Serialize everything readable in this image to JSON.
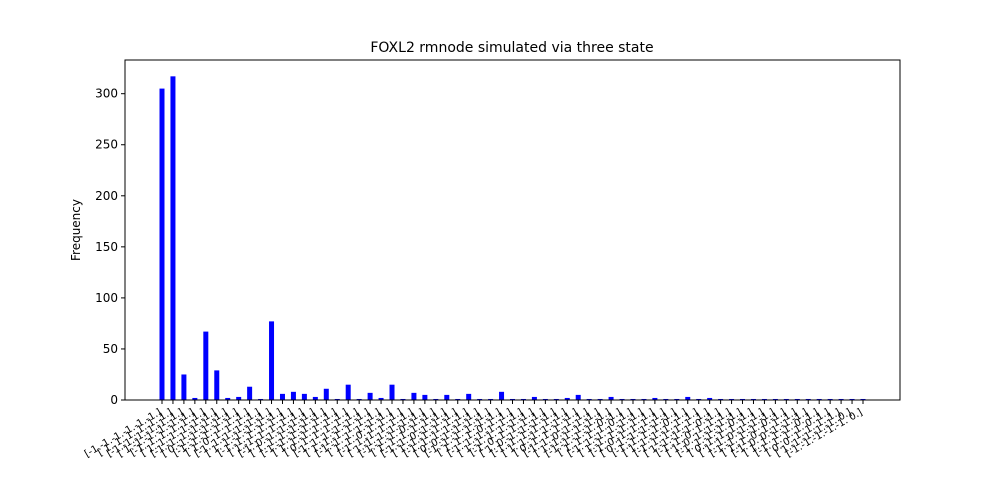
{
  "chart_data": {
    "type": "bar",
    "title": "FOXL2 rmnode simulated via three state",
    "y_label": "Frequency",
    "color": "#0000ff",
    "categories": [
      "[-1.-1.-1.-1.-1.-1.]",
      "[ 1. 1. 1. 1. 1. 1.]",
      "[-1.-1.-1.-1.-1. 1.]",
      "[ 1.-1.-1.-1.-1.-1.]",
      "[-1. 1. 1. 1. 1. 1.]",
      "[ 1. 1. 1. 1.-1.-1.]",
      "[-1.-1. 1.-1.-1.-1.]",
      "[ 0.-1.-1.-1.-1.-1.]",
      "[-1.-1.-1. 1. 1. 1.]",
      "[ 1. 0. 1. 1. 1. 1.]",
      "[-1. 1.-1.-1.-1.-1.]",
      "[ 1. 1.-1.-1.-1.-1.]",
      "[-1.-1. 1. 1. 1. 1.]",
      "[ 1.-1. 1. 1. 1. 1.]",
      "[-1. 0.-1.-1.-1.-1.]",
      "[ 1. 1. 1.-1.-1.-1.]",
      "[-1.-1.-1.-1. 1. 1.]",
      "[ 1. 1.-1. 1. 1. 1.]",
      "[ 0. 1. 1. 1. 1. 1.]",
      "[-1. 1. 1.-1.-1.-1.]",
      "[ 1.-1.-1. 1. 1. 1.]",
      "[-1.-1. 1. 1.-1.-1.]",
      "[ 1. 1. 0. 1. 1. 1.]",
      "[-1. 1.-1. 1. 1. 1.]",
      "[ 1.-1. 1.-1.-1.-1.]",
      "[-1.-1.-1. 0.-1.-1.]",
      "[ 1. 1. 1. 1. 1.-1.]",
      "[-1.-1. 0.-1.-1.-1.]",
      "[ 1.-1.-1.-1. 1. 1.]",
      "[-1. 1. 1. 1.-1.-1.]",
      "[ 0. 0.-1.-1.-1.-1.]",
      "[-1.-1.-1. 1.-1.-1.]",
      "[ 1. 1. 1. 0. 1. 1.]",
      "[-1. 1.-1.-1. 1. 1.]",
      "[ 1.-1. 1. 1.-1.-1.]",
      "[-1. 0. 1. 1. 1. 1.]",
      "[ 1. 0.-1.-1.-1.-1.]",
      "[-1.-1. 1.-1. 1. 1.]",
      "[ 1. 1.-1. 1.-1.-1.]",
      "[ 0.-1. 1. 1. 1. 1.]",
      "[-1. 1. 0.-1.-1.-1.]",
      "[ 1.-1.-1. 1.-1.-1.]",
      "[-1.-1.-1.-1. 0.-1.]",
      "[ 1. 1. 1. 1. 0. 1.]",
      "[-1. 1.-1. 1.-1.-1.]",
      "[ 1.-1. 1.-1. 1. 1.]",
      "[-1. 0.-1. 1. 1. 1.]",
      "[ 0. 1.-1.-1.-1.-1.]",
      "[-1.-1. 1. 1. 0. 1.]",
      "[ 1. 1.-1.-1. 1. 1.]",
      "[-1. 1. 1.-1. 1. 1.]",
      "[ 1.-1.-1.-1. 0.-1.]",
      "[-1.-1. 0. 1. 1. 1.]",
      "[ 1. 0. 1.-1.-1.-1.]",
      "[-1. 1.-1.-1. 0.-1.]",
      "[ 0.-1.-1. 1. 1. 1.]",
      "[ 1. 1. 0.-1.-1.-1.]",
      "[-1.-1. 1.-1. 0.-1.]",
      "[ 1.-1. 0. 1. 1. 1.]",
      "[-1. 0. 0.-1.-1.-1.]",
      "[ 1. 1. 1.-1. 0. 1.]",
      "[-1. 1. 1. 1. 0. 1.]",
      "[ 0. 0. 1. 1. 1. 1.]",
      "[ 1.-1.-1.-1.-1. 0.]",
      "[-1.-1.-1.-1.-1. 0.]"
    ],
    "values": [
      305,
      317,
      25,
      2,
      67,
      29,
      2,
      3,
      13,
      1,
      77,
      6,
      8,
      6,
      3,
      11,
      1,
      15,
      1,
      7,
      2,
      15,
      1,
      7,
      5,
      1,
      5,
      1,
      6,
      1,
      1,
      8,
      1,
      1,
      3,
      1,
      1,
      2,
      5,
      1,
      1,
      3,
      1,
      1,
      1,
      2,
      1,
      1,
      3,
      1,
      2,
      1,
      1,
      1,
      1,
      1,
      1,
      1,
      1,
      1,
      1,
      1,
      1,
      1,
      1
    ],
    "ylim": [
      0,
      333
    ],
    "yticks": [
      0,
      50,
      100,
      150,
      200,
      250,
      300
    ]
  }
}
